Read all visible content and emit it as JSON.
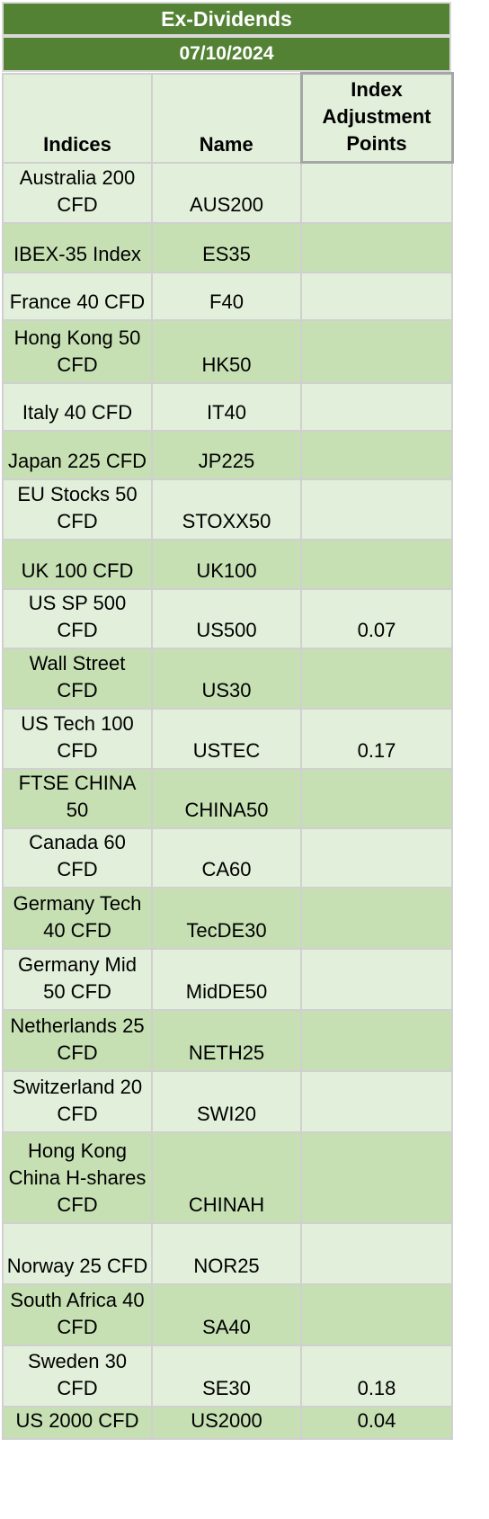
{
  "title": "Ex-Dividends",
  "date": "07/10/2024",
  "columns": {
    "indices": "Indices",
    "name": "Name",
    "adjustment": "Index Adjustment Points"
  },
  "rows": [
    {
      "index": "Australia 200 CFD",
      "name": "AUS200",
      "points": ""
    },
    {
      "index": "IBEX-35 Index",
      "name": "ES35",
      "points": ""
    },
    {
      "index": "France 40 CFD",
      "name": "F40",
      "points": ""
    },
    {
      "index": "Hong Kong 50 CFD",
      "name": "HK50",
      "points": ""
    },
    {
      "index": "Italy 40 CFD",
      "name": "IT40",
      "points": ""
    },
    {
      "index": "Japan 225 CFD",
      "name": "JP225",
      "points": ""
    },
    {
      "index": "EU Stocks 50 CFD",
      "name": "STOXX50",
      "points": ""
    },
    {
      "index": "UK 100 CFD",
      "name": "UK100",
      "points": ""
    },
    {
      "index": "US SP 500 CFD",
      "name": "US500",
      "points": "0.07"
    },
    {
      "index": "Wall Street CFD",
      "name": "US30",
      "points": ""
    },
    {
      "index": "US Tech 100 CFD",
      "name": "USTEC",
      "points": "0.17"
    },
    {
      "index": "FTSE CHINA 50",
      "name": "CHINA50",
      "points": ""
    },
    {
      "index": "Canada 60 CFD",
      "name": "CA60",
      "points": ""
    },
    {
      "index": "Germany Tech 40 CFD",
      "name": "TecDE30",
      "points": ""
    },
    {
      "index": "Germany Mid 50 CFD",
      "name": "MidDE50",
      "points": ""
    },
    {
      "index": "Netherlands 25 CFD",
      "name": "NETH25",
      "points": ""
    },
    {
      "index": "Switzerland 20 CFD",
      "name": "SWI20",
      "points": ""
    },
    {
      "index": "Hong Kong China H-shares CFD",
      "name": "CHINAH",
      "points": ""
    },
    {
      "index": "Norway 25 CFD",
      "name": "NOR25",
      "points": ""
    },
    {
      "index": "South Africa 40 CFD",
      "name": "SA40",
      "points": ""
    },
    {
      "index": "Sweden 30 CFD",
      "name": "SE30",
      "points": "0.18"
    },
    {
      "index": "US 2000 CFD",
      "name": "US2000",
      "points": "0.04"
    }
  ]
}
